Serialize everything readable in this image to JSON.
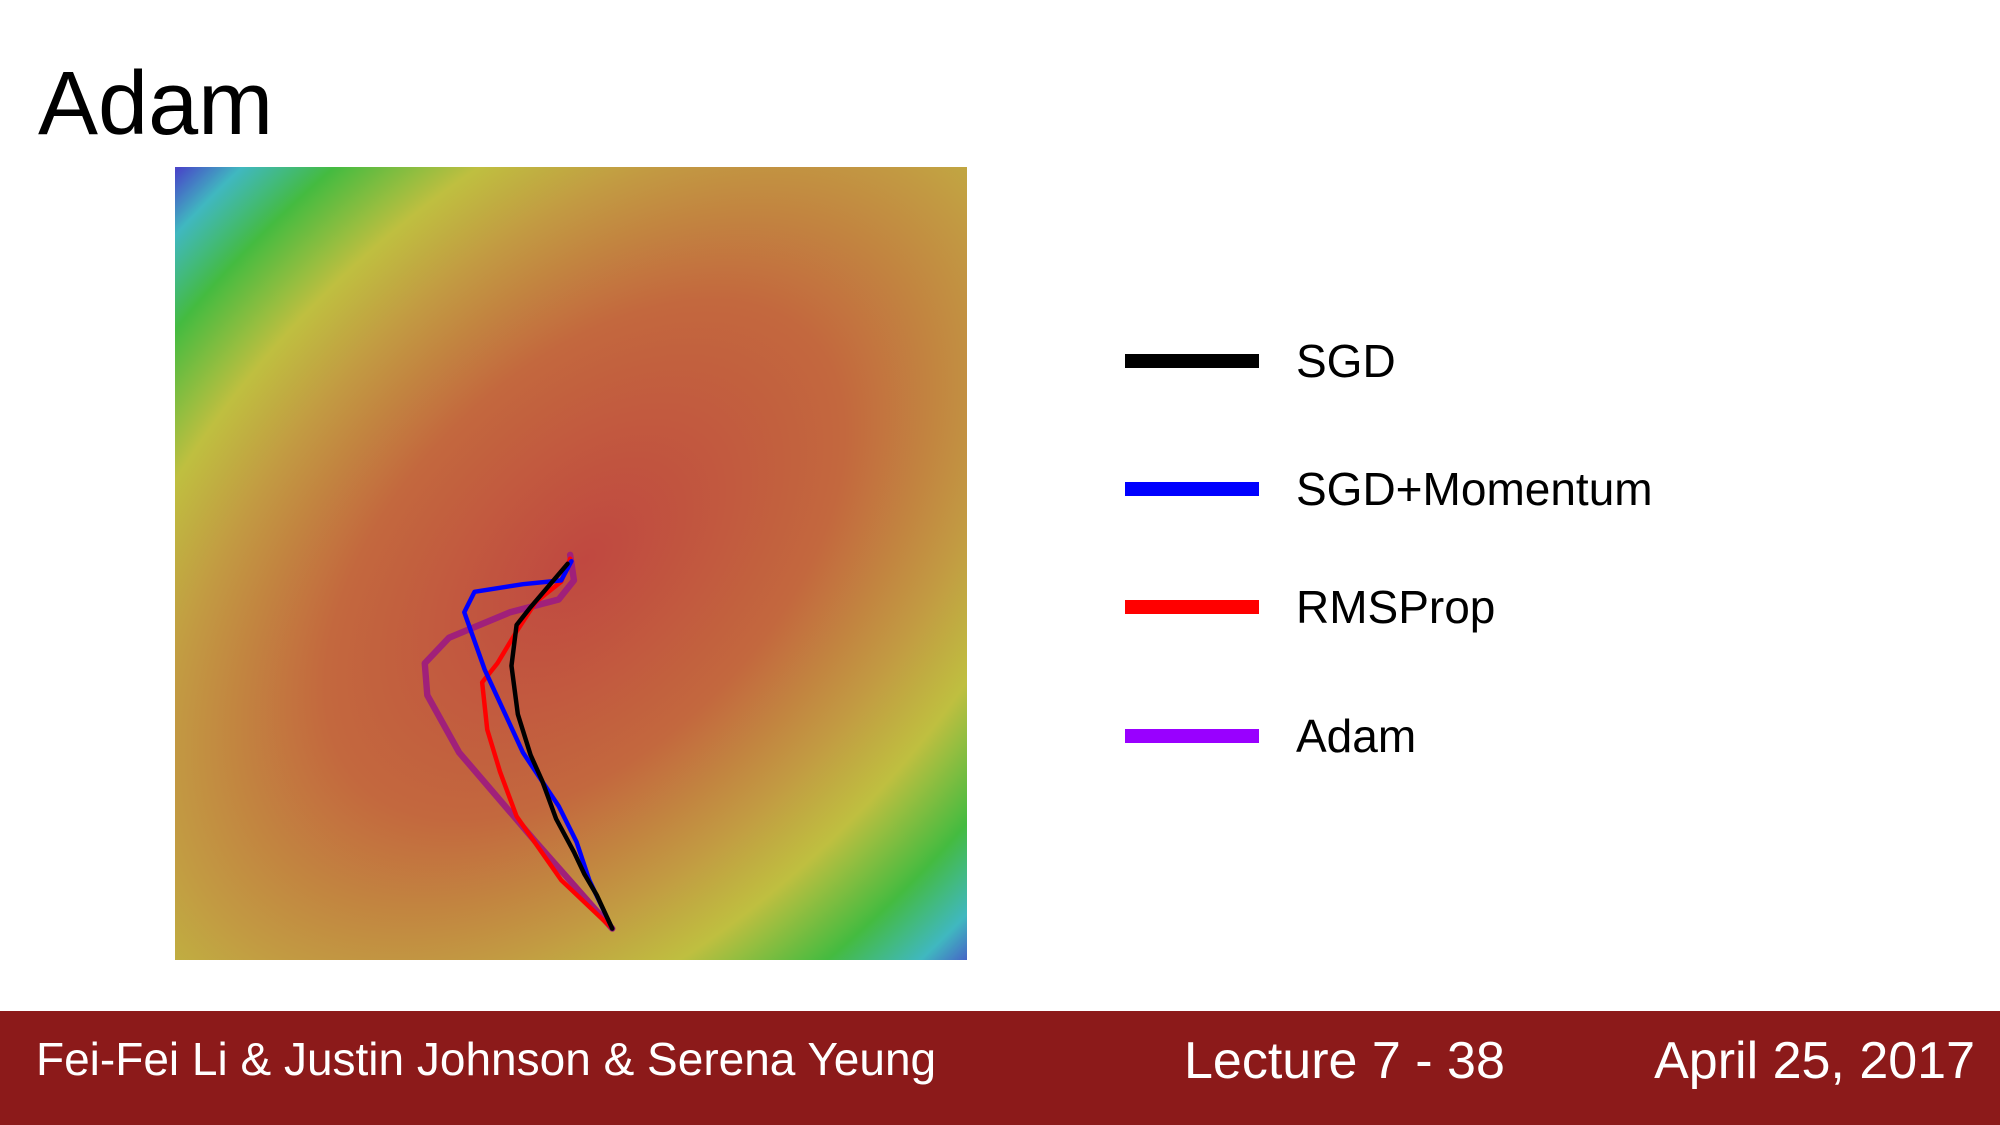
{
  "title": "Adam",
  "legend": [
    {
      "label": "SGD",
      "color": "#000000"
    },
    {
      "label": "SGD+Momentum",
      "color": "#0000ff"
    },
    {
      "label": "RMSProp",
      "color": "#ff0000"
    },
    {
      "label": "Adam",
      "color": "#9900ff"
    }
  ],
  "footer": {
    "authors": "Fei-Fei Li & Justin Johnson & Serena Yeung",
    "lecture": "Lecture 7 - 38",
    "date": "April 25, 2017"
  }
}
